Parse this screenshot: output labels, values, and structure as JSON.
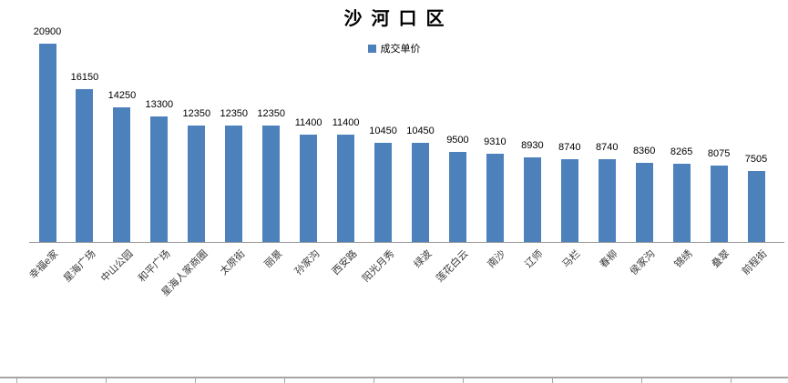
{
  "chart_data": {
    "type": "bar",
    "title": "沙河口区",
    "legend_label": "成交单价",
    "legend_position": "top",
    "grid": false,
    "y_axis_shown": false,
    "data_labels_shown": true,
    "x_labels_rotation_deg": 45,
    "ylim": [
      0,
      22000
    ],
    "categories": [
      "幸福e家",
      "星海广场",
      "中山公园",
      "和平广场",
      "星海人家商圈",
      "太原街",
      "丽景",
      "孙家沟",
      "西安路",
      "阳光月秀",
      "绿波",
      "莲花白云",
      "南沙",
      "辽师",
      "马栏",
      "春柳",
      "侯家沟",
      "锦绣",
      "叠翠",
      "前程街"
    ],
    "series": [
      {
        "name": "成交单价",
        "values": [
          20900,
          16150,
          14250,
          13300,
          12350,
          12350,
          12350,
          11400,
          11400,
          10450,
          10450,
          9500,
          9310,
          8930,
          8740,
          8740,
          8360,
          8265,
          8075,
          7505
        ]
      }
    ]
  },
  "colors": {
    "bar": "#4D81BC",
    "axis_line": "#9b9b9b",
    "ruler_line": "#a6a6a6",
    "title_text": "#000000",
    "label_text": "#3a3a3a"
  }
}
